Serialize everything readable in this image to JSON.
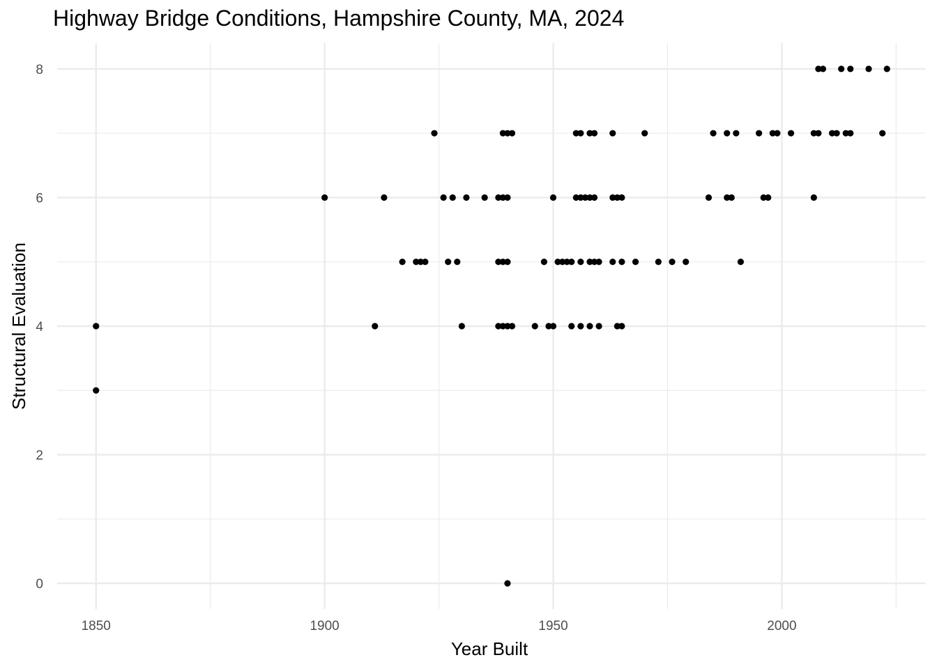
{
  "chart_data": {
    "type": "scatter",
    "title": "Highway Bridge Conditions, Hampshire County, MA, 2024",
    "xlabel": "Year Built",
    "ylabel": "Structural Evaluation",
    "xlim": [
      1841.5,
      2031.5
    ],
    "ylim": [
      -0.4,
      8.4
    ],
    "x_ticks": [
      1850,
      1900,
      1950,
      2000
    ],
    "y_ticks": [
      0,
      2,
      4,
      6,
      8
    ],
    "grid": true,
    "point_color": "#000000",
    "grid_color": "#ebebeb",
    "points": [
      {
        "x": 1850,
        "y": 4
      },
      {
        "x": 1850,
        "y": 3
      },
      {
        "x": 1900,
        "y": 6
      },
      {
        "x": 1911,
        "y": 4
      },
      {
        "x": 1913,
        "y": 6
      },
      {
        "x": 1917,
        "y": 5
      },
      {
        "x": 1920,
        "y": 5
      },
      {
        "x": 1921,
        "y": 5
      },
      {
        "x": 1922,
        "y": 5
      },
      {
        "x": 1924,
        "y": 7
      },
      {
        "x": 1926,
        "y": 6
      },
      {
        "x": 1927,
        "y": 5
      },
      {
        "x": 1928,
        "y": 6
      },
      {
        "x": 1929,
        "y": 5
      },
      {
        "x": 1930,
        "y": 4
      },
      {
        "x": 1931,
        "y": 6
      },
      {
        "x": 1935,
        "y": 6
      },
      {
        "x": 1938,
        "y": 6
      },
      {
        "x": 1938,
        "y": 5
      },
      {
        "x": 1938,
        "y": 4
      },
      {
        "x": 1939,
        "y": 6
      },
      {
        "x": 1939,
        "y": 5
      },
      {
        "x": 1939,
        "y": 4
      },
      {
        "x": 1939,
        "y": 7
      },
      {
        "x": 1940,
        "y": 7
      },
      {
        "x": 1940,
        "y": 6
      },
      {
        "x": 1940,
        "y": 5
      },
      {
        "x": 1940,
        "y": 4
      },
      {
        "x": 1940,
        "y": 0
      },
      {
        "x": 1941,
        "y": 7
      },
      {
        "x": 1941,
        "y": 4
      },
      {
        "x": 1946,
        "y": 4
      },
      {
        "x": 1948,
        "y": 5
      },
      {
        "x": 1949,
        "y": 4
      },
      {
        "x": 1950,
        "y": 4
      },
      {
        "x": 1950,
        "y": 6
      },
      {
        "x": 1951,
        "y": 5
      },
      {
        "x": 1952,
        "y": 5
      },
      {
        "x": 1953,
        "y": 5
      },
      {
        "x": 1954,
        "y": 5
      },
      {
        "x": 1954,
        "y": 4
      },
      {
        "x": 1955,
        "y": 7
      },
      {
        "x": 1955,
        "y": 6
      },
      {
        "x": 1956,
        "y": 7
      },
      {
        "x": 1956,
        "y": 6
      },
      {
        "x": 1956,
        "y": 5
      },
      {
        "x": 1956,
        "y": 4
      },
      {
        "x": 1957,
        "y": 6
      },
      {
        "x": 1958,
        "y": 7
      },
      {
        "x": 1958,
        "y": 6
      },
      {
        "x": 1958,
        "y": 5
      },
      {
        "x": 1958,
        "y": 4
      },
      {
        "x": 1959,
        "y": 7
      },
      {
        "x": 1959,
        "y": 6
      },
      {
        "x": 1959,
        "y": 5
      },
      {
        "x": 1960,
        "y": 5
      },
      {
        "x": 1960,
        "y": 4
      },
      {
        "x": 1963,
        "y": 7
      },
      {
        "x": 1963,
        "y": 6
      },
      {
        "x": 1963,
        "y": 5
      },
      {
        "x": 1964,
        "y": 6
      },
      {
        "x": 1964,
        "y": 4
      },
      {
        "x": 1965,
        "y": 6
      },
      {
        "x": 1965,
        "y": 5
      },
      {
        "x": 1965,
        "y": 4
      },
      {
        "x": 1968,
        "y": 5
      },
      {
        "x": 1970,
        "y": 7
      },
      {
        "x": 1973,
        "y": 5
      },
      {
        "x": 1976,
        "y": 5
      },
      {
        "x": 1979,
        "y": 5
      },
      {
        "x": 1984,
        "y": 6
      },
      {
        "x": 1985,
        "y": 7
      },
      {
        "x": 1988,
        "y": 7
      },
      {
        "x": 1988,
        "y": 6
      },
      {
        "x": 1989,
        "y": 6
      },
      {
        "x": 1990,
        "y": 7
      },
      {
        "x": 1991,
        "y": 5
      },
      {
        "x": 1995,
        "y": 7
      },
      {
        "x": 1996,
        "y": 6
      },
      {
        "x": 1997,
        "y": 6
      },
      {
        "x": 1998,
        "y": 7
      },
      {
        "x": 1999,
        "y": 7
      },
      {
        "x": 2002,
        "y": 7
      },
      {
        "x": 2007,
        "y": 7
      },
      {
        "x": 2007,
        "y": 6
      },
      {
        "x": 2008,
        "y": 7
      },
      {
        "x": 2008,
        "y": 8
      },
      {
        "x": 2009,
        "y": 8
      },
      {
        "x": 2011,
        "y": 7
      },
      {
        "x": 2012,
        "y": 7
      },
      {
        "x": 2013,
        "y": 8
      },
      {
        "x": 2014,
        "y": 7
      },
      {
        "x": 2015,
        "y": 7
      },
      {
        "x": 2015,
        "y": 8
      },
      {
        "x": 2019,
        "y": 8
      },
      {
        "x": 2022,
        "y": 7
      },
      {
        "x": 2023,
        "y": 8
      }
    ]
  }
}
